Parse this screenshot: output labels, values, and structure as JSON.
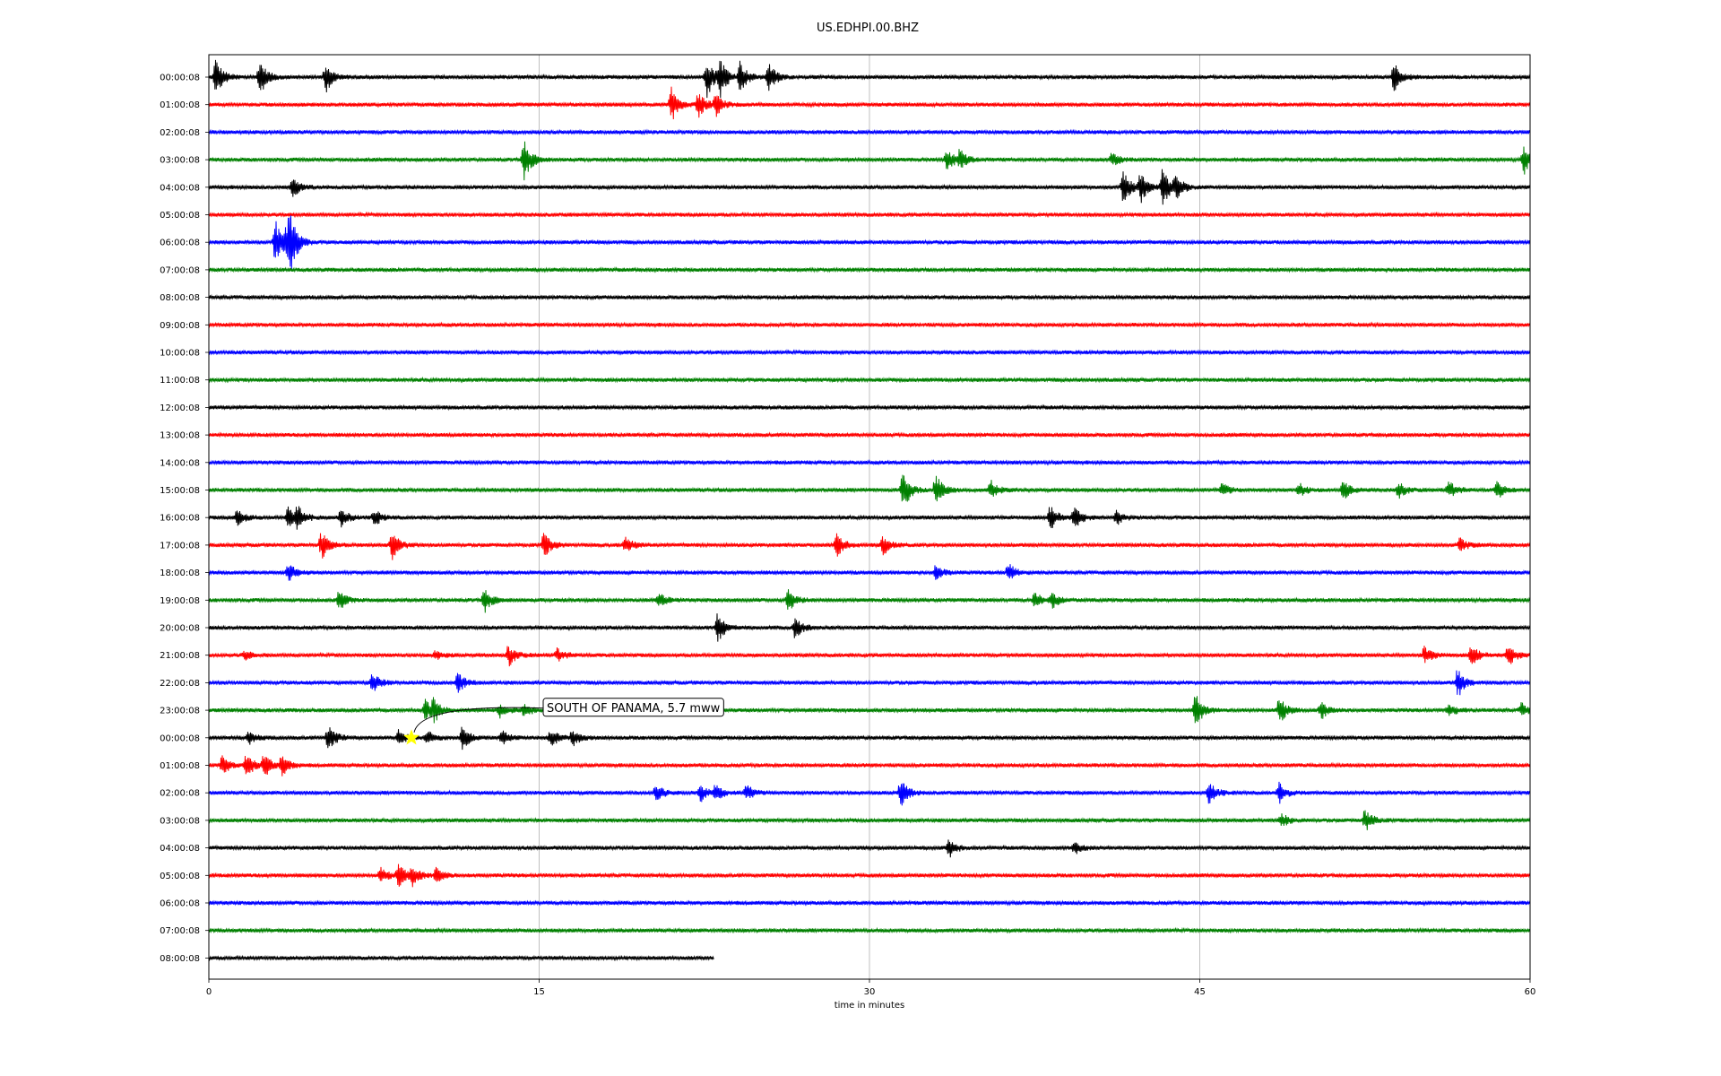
{
  "chart_data": {
    "type": "line",
    "title": "US.EDHPI.00.BHZ",
    "xlabel": "time in minutes",
    "ylabel": "",
    "xlim": [
      0,
      60
    ],
    "x_ticks": [
      "0",
      "15",
      "30",
      "45",
      "60"
    ],
    "x_tick_values": [
      0,
      15,
      30,
      45,
      60
    ],
    "grid": "vertical lines at x ticks",
    "line_colors": [
      "#000000",
      "#ff0000",
      "#0000ff",
      "#008000"
    ],
    "annotation": {
      "text": "SOUTH OF PANAMA, 5.7 mww",
      "marker": "yellow-star",
      "marker_color": "#ffff00",
      "row_label": "00:00:08",
      "minute": 9.2
    },
    "rows": [
      {
        "label": "00:00:08",
        "end_minute": 60,
        "events": [
          [
            0.3,
            1.6
          ],
          [
            2.3,
            1.5
          ],
          [
            5.3,
            1.2
          ],
          [
            22.6,
            1.8
          ],
          [
            23.2,
            1.6
          ],
          [
            24.1,
            1.4
          ],
          [
            25.4,
            1.3
          ],
          [
            53.8,
            1.4
          ]
        ]
      },
      {
        "label": "01:00:08",
        "end_minute": 60,
        "events": [
          [
            21.0,
            1.4
          ],
          [
            22.2,
            1.1
          ],
          [
            23.0,
            0.9
          ]
        ]
      },
      {
        "label": "02:00:08",
        "end_minute": 60,
        "events": []
      },
      {
        "label": "03:00:08",
        "end_minute": 60,
        "events": [
          [
            14.3,
            1.8
          ],
          [
            33.5,
            1.0
          ],
          [
            34.1,
            0.8
          ],
          [
            41.0,
            0.6
          ],
          [
            59.7,
            1.2
          ]
        ]
      },
      {
        "label": "04:00:08",
        "end_minute": 60,
        "events": [
          [
            3.8,
            0.8
          ],
          [
            41.5,
            1.4
          ],
          [
            42.3,
            1.2
          ],
          [
            43.3,
            1.6
          ],
          [
            43.9,
            1.0
          ]
        ]
      },
      {
        "label": "05:00:08",
        "end_minute": 60,
        "events": []
      },
      {
        "label": "06:00:08",
        "end_minute": 60,
        "events": [
          [
            3.0,
            2.0
          ],
          [
            3.5,
            1.6
          ],
          [
            3.7,
            1.8
          ]
        ]
      },
      {
        "label": "07:00:08",
        "end_minute": 60,
        "events": []
      },
      {
        "label": "08:00:08",
        "end_minute": 60,
        "events": []
      },
      {
        "label": "09:00:08",
        "end_minute": 60,
        "events": []
      },
      {
        "label": "10:00:08",
        "end_minute": 60,
        "events": []
      },
      {
        "label": "11:00:08",
        "end_minute": 60,
        "events": []
      },
      {
        "label": "12:00:08",
        "end_minute": 60,
        "events": []
      },
      {
        "label": "13:00:08",
        "end_minute": 60,
        "events": []
      },
      {
        "label": "14:00:08",
        "end_minute": 60,
        "events": []
      },
      {
        "label": "15:00:08",
        "end_minute": 60,
        "events": [
          [
            31.5,
            1.8
          ],
          [
            33.0,
            1.4
          ],
          [
            35.5,
            0.8
          ],
          [
            46.0,
            0.6
          ],
          [
            49.5,
            0.6
          ],
          [
            51.5,
            0.8
          ],
          [
            54.0,
            0.7
          ],
          [
            56.3,
            0.8
          ],
          [
            58.5,
            0.7
          ]
        ]
      },
      {
        "label": "16:00:08",
        "end_minute": 60,
        "events": [
          [
            1.3,
            0.8
          ],
          [
            3.6,
            1.0
          ],
          [
            4.0,
            0.9
          ],
          [
            6.0,
            0.8
          ],
          [
            7.5,
            0.7
          ],
          [
            38.2,
            1.0
          ],
          [
            39.3,
            0.9
          ],
          [
            41.2,
            0.6
          ]
        ]
      },
      {
        "label": "17:00:08",
        "end_minute": 60,
        "events": [
          [
            5.1,
            1.2
          ],
          [
            8.3,
            1.2
          ],
          [
            15.2,
            1.0
          ],
          [
            18.9,
            0.7
          ],
          [
            28.5,
            1.0
          ],
          [
            30.6,
            0.8
          ],
          [
            56.8,
            0.6
          ]
        ]
      },
      {
        "label": "18:00:08",
        "end_minute": 60,
        "events": [
          [
            3.6,
            0.8
          ],
          [
            33.0,
            0.6
          ],
          [
            36.3,
            0.8
          ]
        ]
      },
      {
        "label": "19:00:08",
        "end_minute": 60,
        "events": [
          [
            5.9,
            0.8
          ],
          [
            12.5,
            1.0
          ],
          [
            20.4,
            0.7
          ],
          [
            26.3,
            1.0
          ],
          [
            37.5,
            0.7
          ],
          [
            38.3,
            0.6
          ]
        ]
      },
      {
        "label": "20:00:08",
        "end_minute": 60,
        "events": [
          [
            23.1,
            1.3
          ],
          [
            26.6,
            1.0
          ]
        ]
      },
      {
        "label": "21:00:08",
        "end_minute": 60,
        "events": [
          [
            1.6,
            0.4
          ],
          [
            10.3,
            0.4
          ],
          [
            13.6,
            0.9
          ],
          [
            15.8,
            0.6
          ],
          [
            55.2,
            0.8
          ],
          [
            57.3,
            0.9
          ],
          [
            59.0,
            0.9
          ]
        ]
      },
      {
        "label": "22:00:08",
        "end_minute": 60,
        "events": [
          [
            7.4,
            1.0
          ],
          [
            11.3,
            0.8
          ],
          [
            56.7,
            1.2
          ]
        ]
      },
      {
        "label": "23:00:08",
        "end_minute": 60,
        "events": [
          [
            9.8,
            1.0
          ],
          [
            10.2,
            0.8
          ],
          [
            13.2,
            0.6
          ],
          [
            14.3,
            0.6
          ],
          [
            44.8,
            1.4
          ],
          [
            48.6,
            1.1
          ],
          [
            50.5,
            0.7
          ],
          [
            56.3,
            0.6
          ],
          [
            59.6,
            0.6
          ]
        ]
      },
      {
        "label": "00:00:08",
        "end_minute": 60,
        "events": [
          [
            1.8,
            0.6
          ],
          [
            5.4,
            1.2
          ],
          [
            8.6,
            0.7
          ],
          [
            9.9,
            0.6
          ],
          [
            11.5,
            1.0
          ],
          [
            13.3,
            0.6
          ],
          [
            15.5,
            0.8
          ],
          [
            16.5,
            0.7
          ]
        ]
      },
      {
        "label": "01:00:08",
        "end_minute": 60,
        "events": [
          [
            0.6,
            0.8
          ],
          [
            1.7,
            1.0
          ],
          [
            2.5,
            1.0
          ],
          [
            3.3,
            0.9
          ]
        ]
      },
      {
        "label": "02:00:08",
        "end_minute": 60,
        "events": [
          [
            20.3,
            0.7
          ],
          [
            22.3,
            0.8
          ],
          [
            23.0,
            0.7
          ],
          [
            24.4,
            0.7
          ],
          [
            31.4,
            1.2
          ],
          [
            45.4,
            1.0
          ],
          [
            48.6,
            0.8
          ]
        ]
      },
      {
        "label": "03:00:08",
        "end_minute": 60,
        "events": [
          [
            48.7,
            0.6
          ],
          [
            52.5,
            1.0
          ]
        ]
      },
      {
        "label": "04:00:08",
        "end_minute": 60,
        "events": [
          [
            33.6,
            0.8
          ],
          [
            39.3,
            0.5
          ]
        ]
      },
      {
        "label": "05:00:08",
        "end_minute": 60,
        "events": [
          [
            7.8,
            0.6
          ],
          [
            8.6,
            1.0
          ],
          [
            9.2,
            0.8
          ],
          [
            10.3,
            0.7
          ]
        ]
      },
      {
        "label": "06:00:08",
        "end_minute": 60,
        "events": []
      },
      {
        "label": "07:00:08",
        "end_minute": 60,
        "events": []
      },
      {
        "label": "08:00:08",
        "end_minute": 22.9,
        "events": []
      }
    ]
  }
}
